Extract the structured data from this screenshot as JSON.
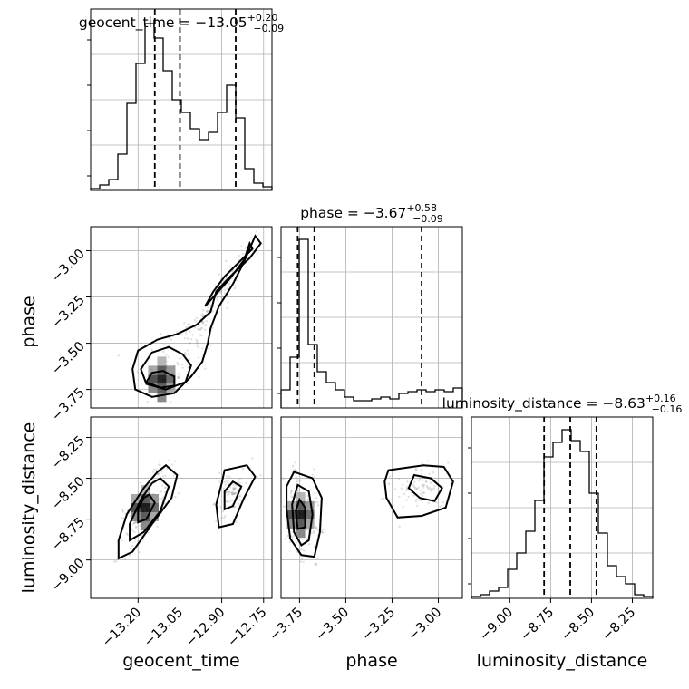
{
  "chart_data": {
    "type": "corner",
    "parameters": [
      "geocent_time",
      "phase",
      "luminosity_distance"
    ],
    "axis_labels": {
      "geocent_time": "geocent_time",
      "phase": "phase",
      "luminosity_distance": "luminosity_distance"
    },
    "ranges": {
      "geocent_time": [
        -13.37,
        -12.72
      ],
      "phase": [
        -3.85,
        -2.87
      ],
      "luminosity_distance": [
        -9.235,
        -8.125
      ]
    },
    "ticks": {
      "geocent_time": [
        -13.2,
        -13.05,
        -12.9,
        -12.75
      ],
      "phase": [
        -3.75,
        -3.5,
        -3.25,
        -3.0
      ],
      "luminosity_distance": [
        -9.0,
        -8.75,
        -8.5,
        -8.25
      ]
    },
    "tick_labels": {
      "geocent_time": [
        "−13.20",
        "−13.05",
        "−12.90",
        "−12.75"
      ],
      "phase": [
        "−3.75",
        "−3.50",
        "−3.25",
        "−3.00"
      ],
      "luminosity_distance": [
        "−9.00",
        "−8.75",
        "−8.50",
        "−8.25"
      ]
    },
    "titles": {
      "geocent_time": {
        "prefix": "geocent_time = −13.05",
        "plus": "+0.20",
        "minus": "−0.09"
      },
      "phase": {
        "prefix": "phase = −3.67",
        "plus": "+0.58",
        "minus": "−0.09"
      },
      "luminosity_distance": {
        "prefix": "luminosity_distance = −8.63",
        "plus": "+0.16",
        "minus": "−0.16"
      }
    },
    "quantiles": {
      "geocent_time": [
        -13.14,
        -13.05,
        -12.85
      ],
      "phase": [
        -3.76,
        -3.67,
        -3.09
      ],
      "luminosity_distance": [
        -8.79,
        -8.63,
        -8.47
      ]
    },
    "histograms": {
      "geocent_time": {
        "edges": [
          -13.37,
          -13.3375,
          -13.305,
          -13.2725,
          -13.24,
          -13.2075,
          -13.175,
          -13.1425,
          -13.11,
          -13.0775,
          -13.045,
          -13.0125,
          -12.98,
          -12.9475,
          -12.915,
          -12.8825,
          -12.85,
          -12.8175,
          -12.785,
          -12.7525,
          -12.72
        ],
        "counts": [
          0.01,
          0.03,
          0.06,
          0.2,
          0.48,
          0.7,
          0.92,
          0.84,
          0.66,
          0.5,
          0.43,
          0.34,
          0.28,
          0.32,
          0.43,
          0.58,
          0.4,
          0.12,
          0.04,
          0.02
        ]
      },
      "phase": {
        "edges": [
          -3.85,
          -3.801,
          -3.752,
          -3.703,
          -3.654,
          -3.605,
          -3.556,
          -3.507,
          -3.458,
          -3.409,
          -3.36,
          -3.311,
          -3.262,
          -3.213,
          -3.164,
          -3.115,
          -3.066,
          -3.017,
          -2.968,
          -2.919,
          -2.87
        ],
        "counts": [
          0.1,
          0.28,
          0.93,
          0.35,
          0.2,
          0.14,
          0.1,
          0.06,
          0.04,
          0.04,
          0.05,
          0.06,
          0.05,
          0.08,
          0.09,
          0.1,
          0.09,
          0.1,
          0.09,
          0.11
        ]
      },
      "luminosity_distance": {
        "edges": [
          -9.235,
          -9.1795,
          -9.124,
          -9.0685,
          -9.013,
          -8.9575,
          -8.902,
          -8.8465,
          -8.791,
          -8.7355,
          -8.68,
          -8.6245,
          -8.569,
          -8.5135,
          -8.458,
          -8.4025,
          -8.347,
          -8.2915,
          -8.236,
          -8.1805,
          -8.125
        ],
        "counts": [
          0.01,
          0.02,
          0.04,
          0.06,
          0.16,
          0.25,
          0.37,
          0.54,
          0.78,
          0.86,
          0.93,
          0.87,
          0.81,
          0.58,
          0.36,
          0.18,
          0.12,
          0.08,
          0.02,
          0.01
        ]
      }
    },
    "contours": {
      "phase_vs_geocent_time": [
        {
          "level": "outer",
          "points": [
            [
              -12.78,
              -2.92
            ],
            [
              -12.76,
              -2.96
            ],
            [
              -12.8,
              -3.04
            ],
            [
              -12.87,
              -3.14
            ],
            [
              -12.92,
              -3.22
            ],
            [
              -12.94,
              -3.33
            ],
            [
              -12.99,
              -3.4
            ],
            [
              -13.06,
              -3.45
            ],
            [
              -13.13,
              -3.48
            ],
            [
              -13.2,
              -3.54
            ],
            [
              -13.22,
              -3.64
            ],
            [
              -13.21,
              -3.75
            ],
            [
              -13.15,
              -3.79
            ],
            [
              -13.07,
              -3.77
            ],
            [
              -13.01,
              -3.68
            ],
            [
              -12.97,
              -3.6
            ],
            [
              -12.95,
              -3.5
            ],
            [
              -12.94,
              -3.42
            ],
            [
              -12.91,
              -3.3
            ],
            [
              -12.86,
              -3.18
            ],
            [
              -12.82,
              -3.06
            ]
          ]
        },
        {
          "level": "mid",
          "points": [
            [
              -12.8,
              -2.96
            ],
            [
              -12.79,
              -2.99
            ],
            [
              -12.83,
              -3.05
            ],
            [
              -12.89,
              -3.14
            ],
            [
              -12.93,
              -3.22
            ],
            [
              -12.96,
              -3.3
            ],
            [
              -12.93,
              -3.25
            ],
            [
              -12.87,
              -3.15
            ],
            [
              -12.82,
              -3.05
            ]
          ]
        },
        {
          "level": "mid2",
          "points": [
            [
              -13.09,
              -3.52
            ],
            [
              -13.15,
              -3.55
            ],
            [
              -13.19,
              -3.64
            ],
            [
              -13.17,
              -3.72
            ],
            [
              -13.1,
              -3.75
            ],
            [
              -13.03,
              -3.71
            ],
            [
              -13.01,
              -3.62
            ],
            [
              -13.04,
              -3.56
            ]
          ]
        },
        {
          "level": "inner",
          "points": [
            [
              -13.15,
              -3.66
            ],
            [
              -13.17,
              -3.71
            ],
            [
              -13.12,
              -3.74
            ],
            [
              -13.07,
              -3.73
            ],
            [
              -13.07,
              -3.68
            ],
            [
              -13.11,
              -3.65
            ]
          ]
        }
      ],
      "luminosity_distance_vs_geocent_time": [
        {
          "level": "outer",
          "points": [
            [
              -13.1,
              -8.42
            ],
            [
              -13.06,
              -8.48
            ],
            [
              -13.08,
              -8.62
            ],
            [
              -13.15,
              -8.78
            ],
            [
              -13.22,
              -8.95
            ],
            [
              -13.27,
              -8.99
            ],
            [
              -13.27,
              -8.88
            ],
            [
              -13.24,
              -8.72
            ],
            [
              -13.18,
              -8.56
            ],
            [
              -13.13,
              -8.46
            ]
          ]
        },
        {
          "level": "mid",
          "points": [
            [
              -13.12,
              -8.5
            ],
            [
              -13.09,
              -8.55
            ],
            [
              -13.12,
              -8.7
            ],
            [
              -13.18,
              -8.83
            ],
            [
              -13.23,
              -8.88
            ],
            [
              -13.23,
              -8.78
            ],
            [
              -13.19,
              -8.63
            ],
            [
              -13.15,
              -8.53
            ]
          ]
        },
        {
          "level": "inner",
          "points": [
            [
              -13.16,
              -8.6
            ],
            [
              -13.14,
              -8.65
            ],
            [
              -13.17,
              -8.75
            ],
            [
              -13.2,
              -8.77
            ],
            [
              -13.2,
              -8.69
            ],
            [
              -13.18,
              -8.62
            ]
          ]
        },
        {
          "level": "right",
          "points": [
            [
              -12.89,
              -8.45
            ],
            [
              -12.81,
              -8.42
            ],
            [
              -12.78,
              -8.49
            ],
            [
              -12.82,
              -8.62
            ],
            [
              -12.86,
              -8.78
            ],
            [
              -12.91,
              -8.8
            ],
            [
              -12.92,
              -8.66
            ],
            [
              -12.9,
              -8.53
            ]
          ]
        },
        {
          "level": "right-inner",
          "points": [
            [
              -12.86,
              -8.52
            ],
            [
              -12.83,
              -8.55
            ],
            [
              -12.86,
              -8.67
            ],
            [
              -12.89,
              -8.69
            ],
            [
              -12.89,
              -8.58
            ]
          ]
        }
      ],
      "luminosity_distance_vs_phase": [
        {
          "level": "outer",
          "points": [
            [
              -3.78,
              -8.46
            ],
            [
              -3.68,
              -8.5
            ],
            [
              -3.63,
              -8.62
            ],
            [
              -3.64,
              -8.83
            ],
            [
              -3.67,
              -8.98
            ],
            [
              -3.74,
              -8.97
            ],
            [
              -3.8,
              -8.87
            ],
            [
              -3.82,
              -8.69
            ],
            [
              -3.82,
              -8.55
            ]
          ]
        },
        {
          "level": "mid",
          "points": [
            [
              -3.76,
              -8.54
            ],
            [
              -3.7,
              -8.58
            ],
            [
              -3.68,
              -8.72
            ],
            [
              -3.7,
              -8.88
            ],
            [
              -3.74,
              -8.91
            ],
            [
              -3.78,
              -8.83
            ],
            [
              -3.79,
              -8.66
            ]
          ]
        },
        {
          "level": "inner",
          "points": [
            [
              -3.75,
              -8.63
            ],
            [
              -3.72,
              -8.68
            ],
            [
              -3.72,
              -8.8
            ],
            [
              -3.76,
              -8.81
            ],
            [
              -3.77,
              -8.7
            ]
          ]
        },
        {
          "level": "right",
          "points": [
            [
              -3.27,
              -8.45
            ],
            [
              -3.08,
              -8.42
            ],
            [
              -2.97,
              -8.43
            ],
            [
              -2.92,
              -8.52
            ],
            [
              -2.96,
              -8.68
            ],
            [
              -3.09,
              -8.73
            ],
            [
              -3.22,
              -8.74
            ],
            [
              -3.28,
              -8.62
            ],
            [
              -3.29,
              -8.52
            ]
          ]
        },
        {
          "level": "right-mid",
          "points": [
            [
              -3.13,
              -8.48
            ],
            [
              -3.04,
              -8.5
            ],
            [
              -2.98,
              -8.56
            ],
            [
              -3.02,
              -8.64
            ],
            [
              -3.1,
              -8.62
            ],
            [
              -3.16,
              -8.56
            ]
          ]
        }
      ]
    }
  }
}
